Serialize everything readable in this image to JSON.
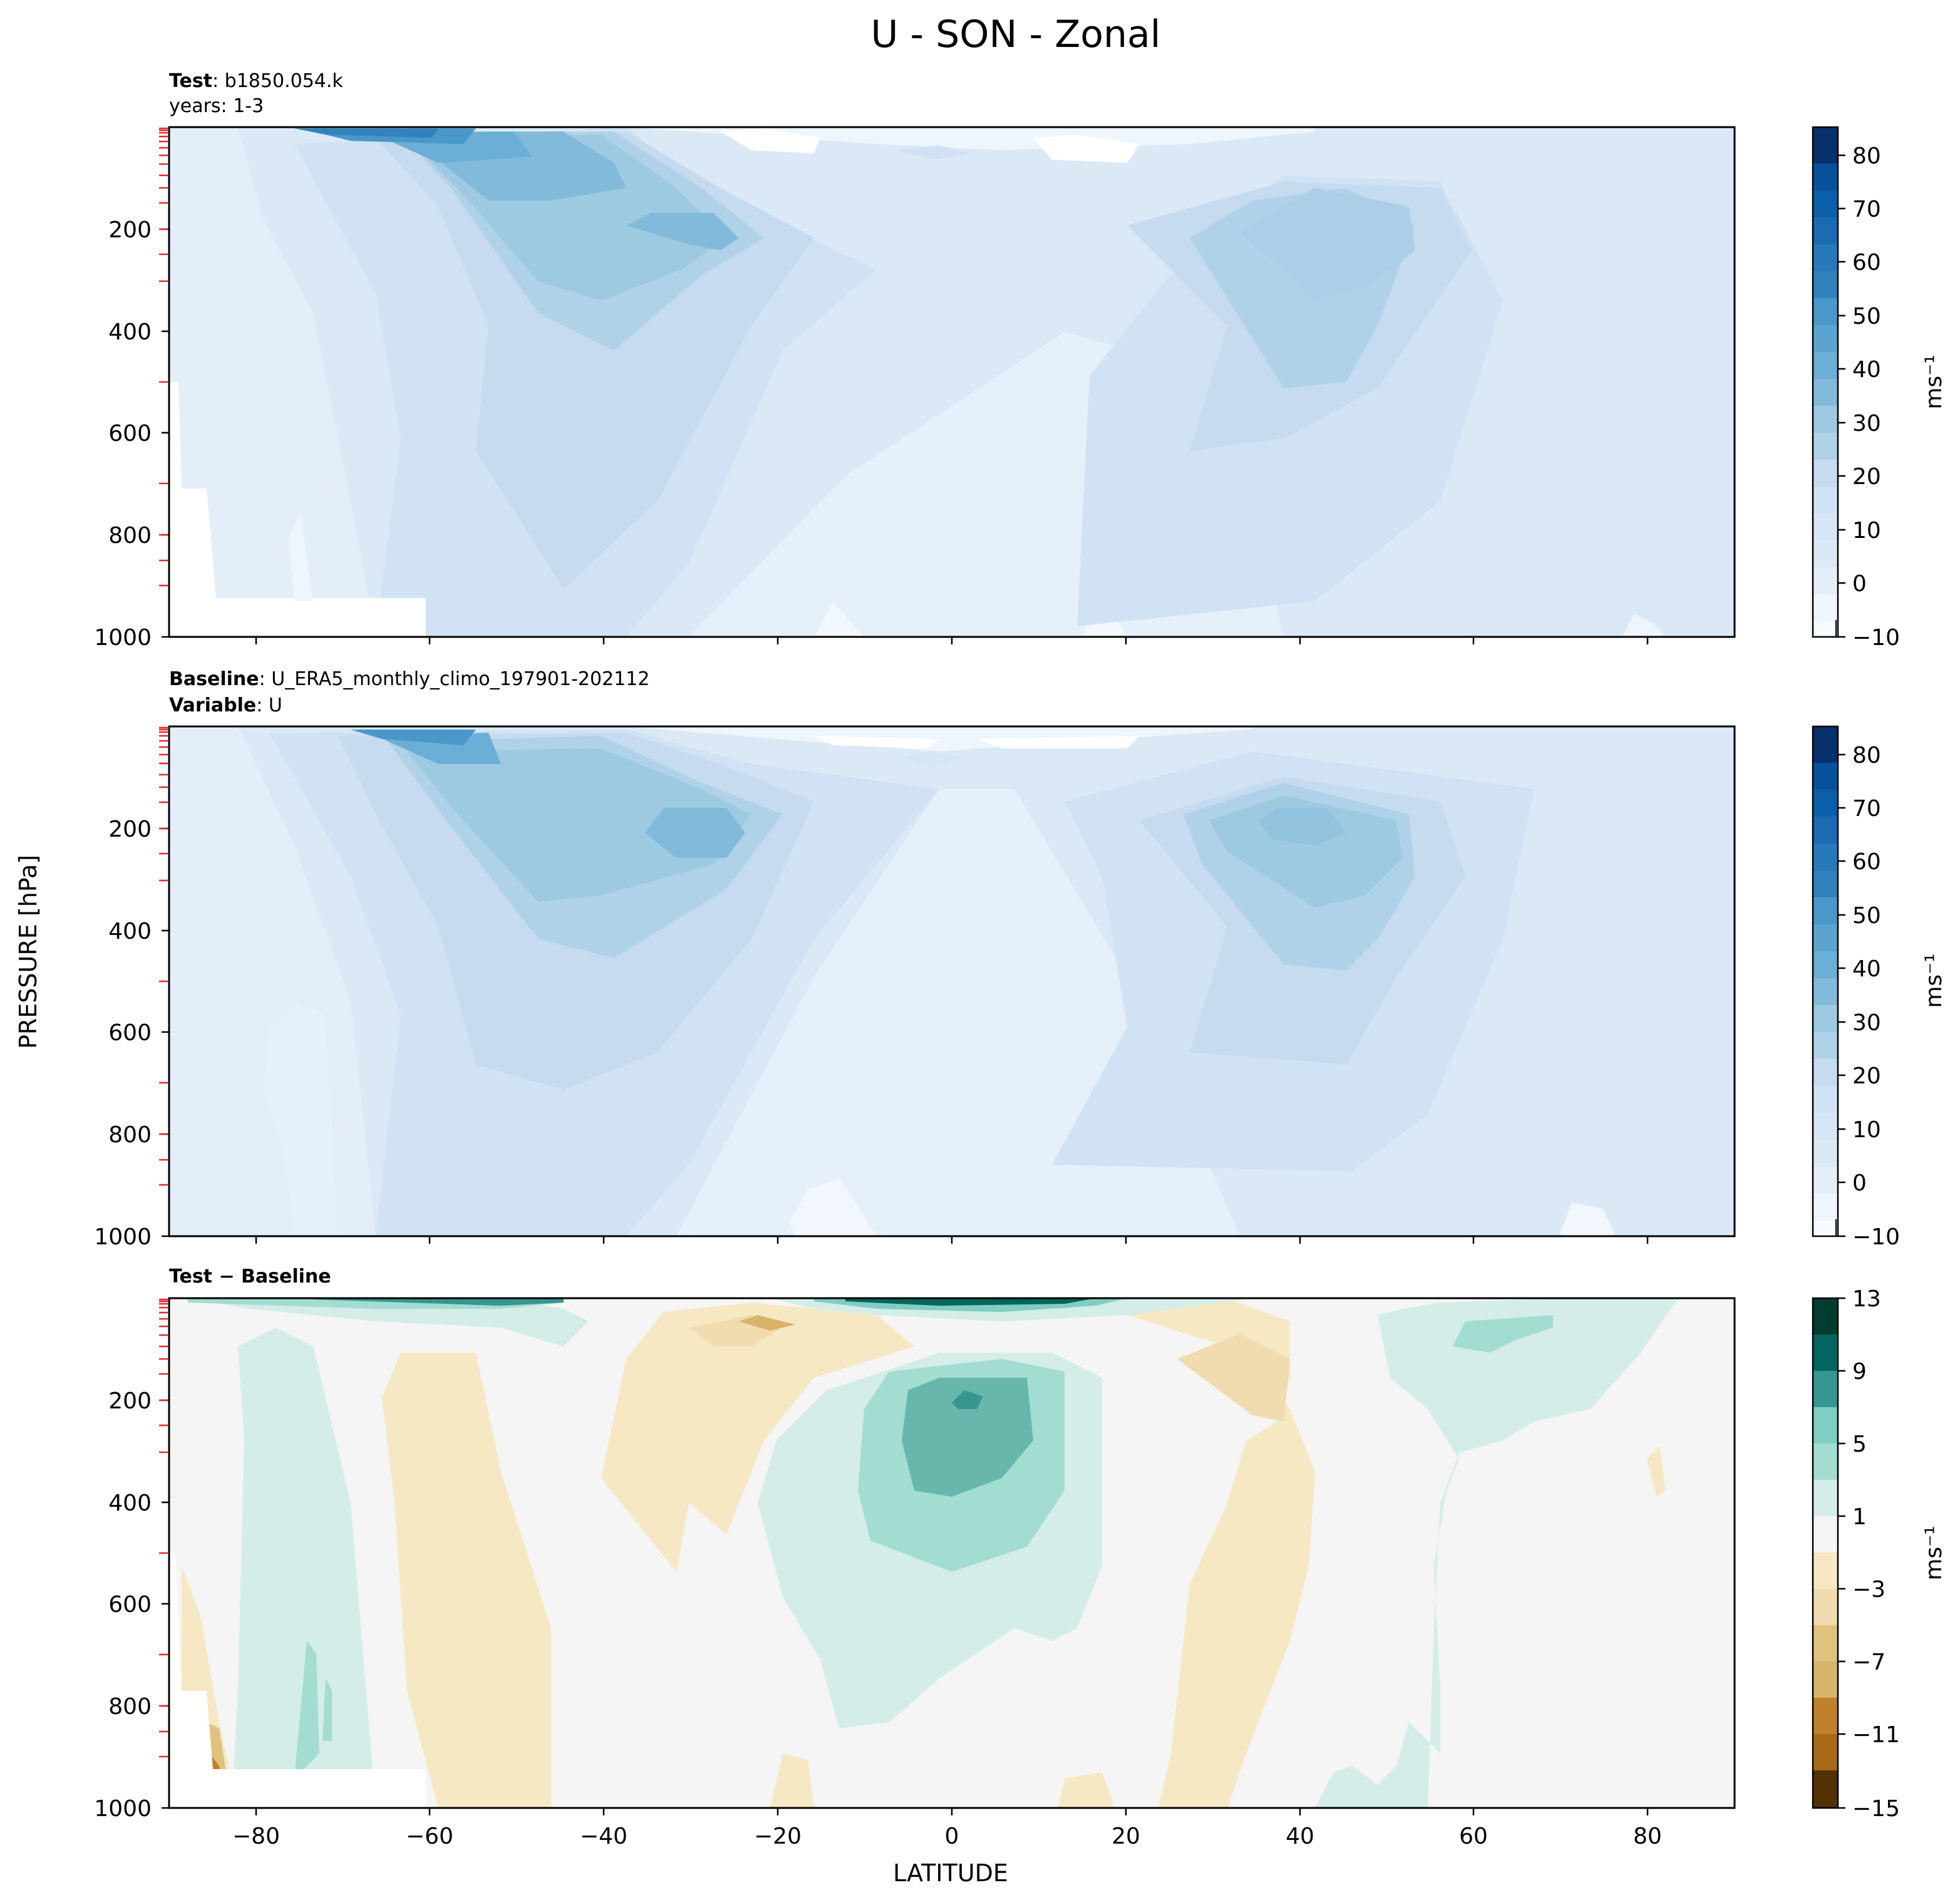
{
  "figure": {
    "title": "U - SON - Zonal",
    "ylabel": "PRESSURE [hPa]",
    "xlabel": "LATITUDE"
  },
  "panels": [
    {
      "id": "test",
      "label_lines": [
        {
          "bold": "Test",
          "text": ": b1850.054.k"
        },
        {
          "bold": "",
          "text": "years: 1-3"
        }
      ],
      "colorbar": {
        "ticks": [
          "80",
          "70",
          "60",
          "50",
          "40",
          "30",
          "20",
          "10",
          "0",
          "−10"
        ],
        "unit": "ms⁻¹",
        "cmap": "blues"
      }
    },
    {
      "id": "baseline",
      "label_lines": [
        {
          "bold": "Baseline",
          "text": ": U_ERA5_monthly_climo_197901-202112"
        },
        {
          "bold": "Variable",
          "text": ": U"
        }
      ],
      "colorbar": {
        "ticks": [
          "80",
          "70",
          "60",
          "50",
          "40",
          "30",
          "20",
          "10",
          "0",
          "−10"
        ],
        "unit": "ms⁻¹",
        "cmap": "blues"
      }
    },
    {
      "id": "diff",
      "label_lines": [
        {
          "bold": "Test − Baseline",
          "text": ""
        }
      ],
      "colorbar": {
        "ticks": [
          "13",
          "9",
          "5",
          "1",
          "−3",
          "−7",
          "−11",
          "−15"
        ],
        "unit": "ms⁻¹",
        "cmap": "BrBG"
      }
    }
  ],
  "colors": {
    "blues": [
      "#f7fbff",
      "#e3eef9",
      "#d6e6f4",
      "#c6dbef",
      "#b0d2e8",
      "#9ecae1",
      "#82badb",
      "#6baed6",
      "#4a98c9",
      "#3182bd",
      "#1c6aaf",
      "#08519c",
      "#08306b"
    ],
    "brbg": [
      "#543005",
      "#8c510a",
      "#a8691a",
      "#bf812d",
      "#d7b46a",
      "#dfc27d",
      "#f0dcae",
      "#f6e8c3",
      "#f5f5f5",
      "#d4ede9",
      "#a3dcd1",
      "#80cdc1",
      "#35978f",
      "#01665e",
      "#003c30"
    ]
  },
  "chart_data": [
    {
      "type": "contourf",
      "title": "Test: b1850.054.k, years: 1-3",
      "variable": "U",
      "xlabel": "LATITUDE",
      "ylabel": "PRESSURE [hPa]",
      "xlim": [
        -90,
        90
      ],
      "ylim": [
        1000,
        0
      ],
      "xticks": [
        -80,
        -60,
        -40,
        -20,
        0,
        20,
        40,
        60,
        80
      ],
      "yticks": [
        200,
        400,
        600,
        800,
        1000
      ],
      "levels": [
        -10,
        -5,
        0,
        5,
        10,
        15,
        20,
        25,
        30,
        35,
        40,
        45,
        50,
        55,
        60,
        65,
        70,
        75,
        80,
        85
      ],
      "features": [
        {
          "name": "southern jet core",
          "lat": -60,
          "pressure": 30,
          "value": 55
        },
        {
          "name": "southern jet upper-tropospheric max",
          "lat": -30,
          "pressure": 200,
          "value": 35
        },
        {
          "name": "northern jet max",
          "lat": 42,
          "pressure": 220,
          "value": 28
        },
        {
          "name": "tropical minimum",
          "lat": 5,
          "pressure": 600,
          "value": 2
        }
      ]
    },
    {
      "type": "contourf",
      "title": "Baseline: U_ERA5_monthly_climo_197901-202112",
      "variable": "U",
      "xlabel": "LATITUDE",
      "ylabel": "PRESSURE [hPa]",
      "xlim": [
        -90,
        90
      ],
      "ylim": [
        1000,
        0
      ],
      "xticks": [
        -80,
        -60,
        -40,
        -20,
        0,
        20,
        40,
        60,
        80
      ],
      "yticks": [
        200,
        400,
        600,
        800,
        1000
      ],
      "levels": [
        -10,
        -5,
        0,
        5,
        10,
        15,
        20,
        25,
        30,
        35,
        40,
        45,
        50,
        55,
        60,
        65,
        70,
        75,
        80,
        85
      ],
      "features": [
        {
          "name": "southern jet core",
          "lat": -62,
          "pressure": 30,
          "value": 50
        },
        {
          "name": "southern jet upper-tropospheric max",
          "lat": -30,
          "pressure": 200,
          "value": 38
        },
        {
          "name": "northern jet max",
          "lat": 40,
          "pressure": 200,
          "value": 33
        },
        {
          "name": "tropical minimum",
          "lat": -5,
          "pressure": 950,
          "value": -2
        }
      ]
    },
    {
      "type": "contourf",
      "title": "Test − Baseline",
      "variable": "U",
      "xlabel": "LATITUDE",
      "ylabel": "PRESSURE [hPa]",
      "xlim": [
        -90,
        90
      ],
      "ylim": [
        1000,
        0
      ],
      "xticks": [
        -80,
        -60,
        -40,
        -20,
        0,
        20,
        40,
        60,
        80
      ],
      "yticks": [
        200,
        400,
        600,
        800,
        1000
      ],
      "levels": [
        -15,
        -13,
        -11,
        -9,
        -7,
        -5,
        -3,
        -1,
        1,
        3,
        5,
        7,
        9,
        11,
        13
      ],
      "features": [
        {
          "name": "equatorial westerly anomaly",
          "lat": 0,
          "pressure": 200,
          "value": 9
        },
        {
          "name": "stratospheric anomaly",
          "lat": -20,
          "pressure": 10,
          "value": 13
        },
        {
          "name": "subtropical easterly anomaly NH",
          "lat": 35,
          "pressure": 200,
          "value": -3
        },
        {
          "name": "subtropical easterly anomaly SH",
          "lat": -25,
          "pressure": 60,
          "value": -5
        },
        {
          "name": "high-latitude NH positive",
          "lat": 62,
          "pressure": 70,
          "value": 5
        }
      ]
    }
  ]
}
